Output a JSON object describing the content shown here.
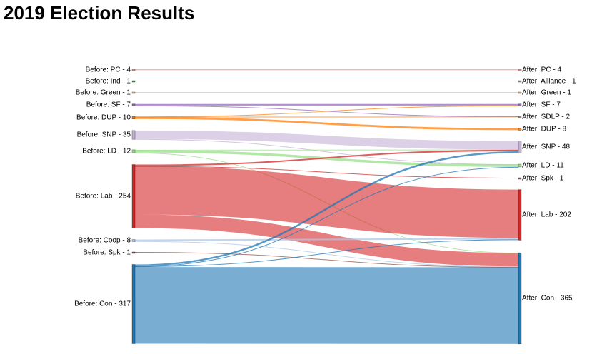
{
  "page": {
    "title": "2019 Election Results"
  },
  "chart_data": {
    "type": "sankey",
    "title": "2019 Election Results",
    "colors": {
      "PC": "#ff9896",
      "Ind": "#2ca02c",
      "Green": "#ffbb78",
      "SF": "#9467bd",
      "DUP": "#ff7f0e",
      "SNP": "#c5b0d5",
      "LD": "#98df8a",
      "Lab": "#d62728",
      "Coop": "#aec7e8",
      "Spk": "#8c564b",
      "Con": "#1f77b4"
    },
    "before": [
      {
        "key": "PC",
        "label": "Before: PC - 4"
      },
      {
        "key": "Ind",
        "label": "Before: Ind - 1"
      },
      {
        "key": "Green",
        "label": "Before: Green - 1"
      },
      {
        "key": "SF",
        "label": "Before: SF - 7"
      },
      {
        "key": "DUP",
        "label": "Before: DUP - 10"
      },
      {
        "key": "SNP",
        "label": "Before: SNP - 35"
      },
      {
        "key": "LD",
        "label": "Before: LD - 12"
      },
      {
        "key": "Lab",
        "label": "Before: Lab - 254"
      },
      {
        "key": "Coop",
        "label": "Before: Coop - 8"
      },
      {
        "key": "Spk",
        "label": "Before: Spk - 1"
      },
      {
        "key": "Con",
        "label": "Before: Con - 317"
      }
    ],
    "after": [
      {
        "key": "PC",
        "label": "After: PC - 4"
      },
      {
        "key": "Alliance",
        "label": "After: Alliance - 1"
      },
      {
        "key": "Green",
        "label": "After: Green - 1"
      },
      {
        "key": "SF",
        "label": "After: SF - 7"
      },
      {
        "key": "SDLP",
        "label": "After: SDLP - 2"
      },
      {
        "key": "DUP",
        "label": "After: DUP - 8"
      },
      {
        "key": "SNP",
        "label": "After: SNP - 48"
      },
      {
        "key": "LD",
        "label": "After: LD - 11"
      },
      {
        "key": "Spk",
        "label": "After: Spk - 1"
      },
      {
        "key": "Lab",
        "label": "After: Lab - 202"
      },
      {
        "key": "Con",
        "label": "After: Con - 365"
      }
    ],
    "flows": [
      {
        "from": "PC",
        "to": "PC",
        "value": 4
      },
      {
        "from": "Ind",
        "to": "Alliance",
        "value": 1
      },
      {
        "from": "Green",
        "to": "Green",
        "value": 1
      },
      {
        "from": "SF",
        "to": "SF",
        "value": 6
      },
      {
        "from": "SF",
        "to": "SDLP",
        "value": 1
      },
      {
        "from": "DUP",
        "to": "SF",
        "value": 1
      },
      {
        "from": "DUP",
        "to": "SDLP",
        "value": 1
      },
      {
        "from": "DUP",
        "to": "DUP",
        "value": 8
      },
      {
        "from": "SNP",
        "to": "SNP",
        "value": 34
      },
      {
        "from": "SNP",
        "to": "LD",
        "value": 1
      },
      {
        "from": "LD",
        "to": "SNP",
        "value": 1
      },
      {
        "from": "LD",
        "to": "LD",
        "value": 10
      },
      {
        "from": "LD",
        "to": "Con",
        "value": 1
      },
      {
        "from": "Lab",
        "to": "SNP",
        "value": 6
      },
      {
        "from": "Lab",
        "to": "Spk",
        "value": 1
      },
      {
        "from": "Lab",
        "to": "Lab",
        "value": 193
      },
      {
        "from": "Lab",
        "to": "Con",
        "value": 54
      },
      {
        "from": "Coop",
        "to": "Lab",
        "value": 6
      },
      {
        "from": "Coop",
        "to": "Con",
        "value": 2
      },
      {
        "from": "Spk",
        "to": "Con",
        "value": 1
      },
      {
        "from": "Con",
        "to": "SNP",
        "value": 7
      },
      {
        "from": "Con",
        "to": "LD",
        "value": 0
      },
      {
        "from": "Con",
        "to": "Lab",
        "value": 3
      },
      {
        "from": "Con",
        "to": "Con",
        "value": 307
      }
    ]
  }
}
